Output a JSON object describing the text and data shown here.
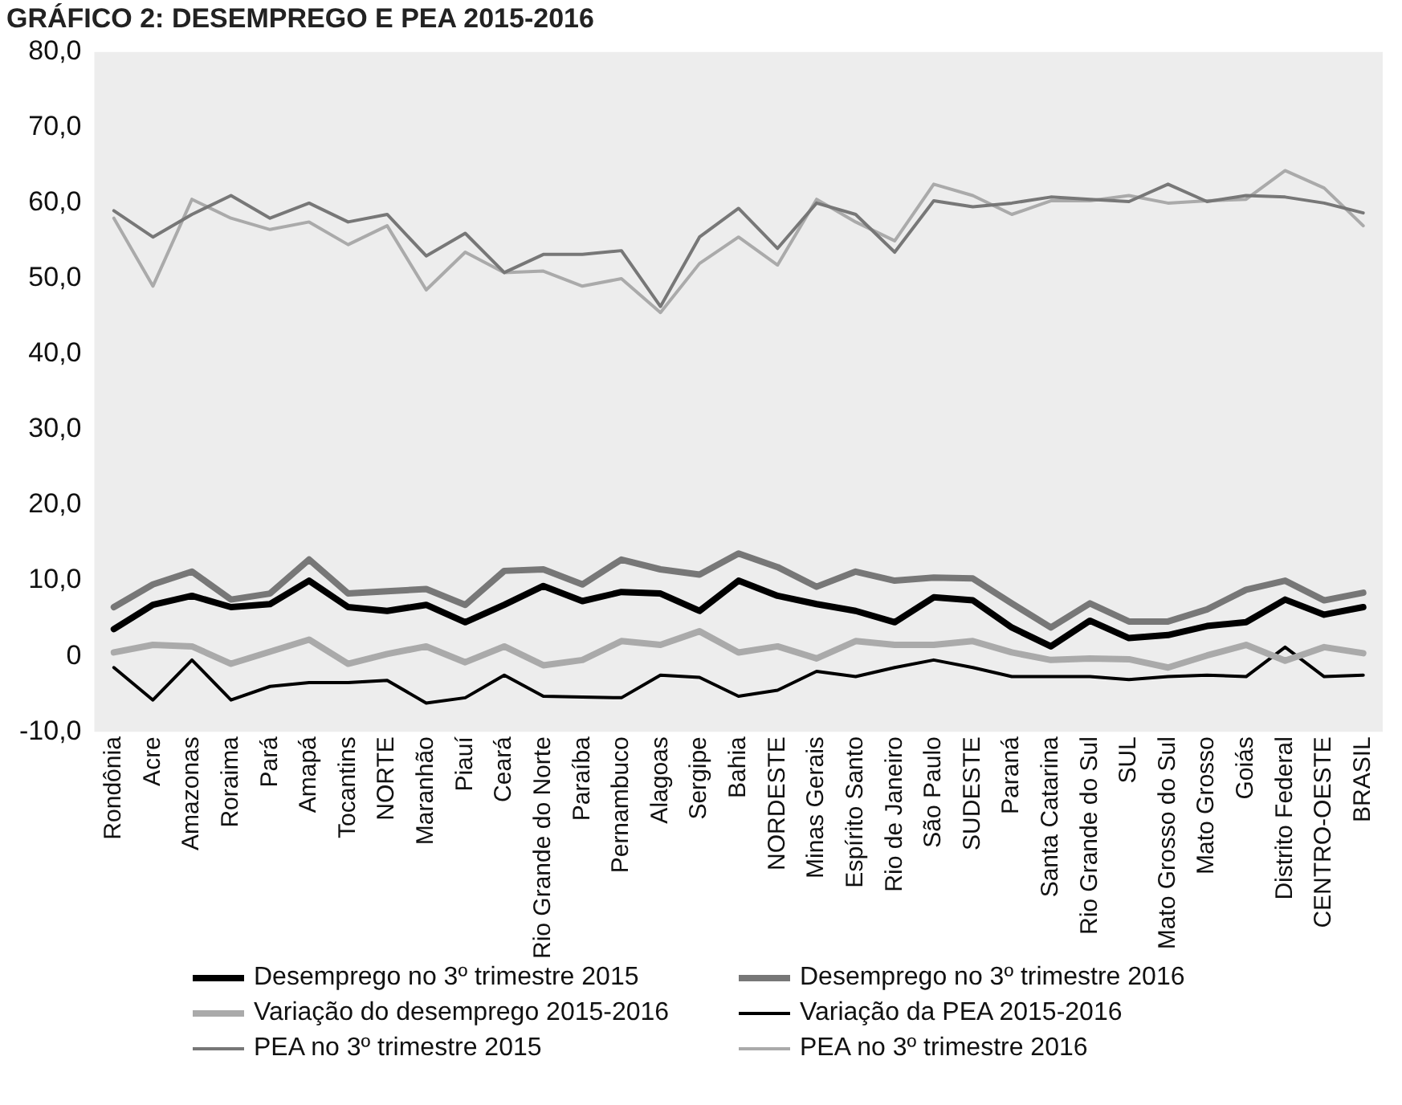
{
  "chart_data": {
    "type": "line",
    "title": "GRÁFICO 2: DESEMPREGO E PEA 2015-2016",
    "categories": [
      "Rondônia",
      "Acre",
      "Amazonas",
      "Roraima",
      "Pará",
      "Amapá",
      "Tocantins",
      "NORTE",
      "Maranhão",
      "Piauí",
      "Ceará",
      "Rio Grande do Norte",
      "Paraíba",
      "Pernambuco",
      "Alagoas",
      "Sergipe",
      "Bahia",
      "NORDESTE",
      "Minas Gerais",
      "Espírito Santo",
      "Rio de Janeiro",
      "São Paulo",
      "SUDESTE",
      "Paraná",
      "Santa Catarina",
      "Rio Grande do Sul",
      "SUL",
      "Mato Grosso do Sul",
      "Mato Grosso",
      "Goiás",
      "Distrito Federal",
      "CENTRO-OESTE",
      "BRASIL"
    ],
    "series": [
      {
        "name": "Desemprego no 3º trimestre 2015",
        "color": "#000000",
        "values": [
          3.6,
          6.8,
          8,
          6.5,
          6.9,
          10,
          6.5,
          6,
          6.8,
          4.5,
          6.8,
          9.3,
          7.3,
          8.5,
          8.3,
          6,
          10,
          8,
          6.9,
          6,
          4.5,
          7.8,
          7.4,
          3.8,
          1.3,
          4.7,
          2.4,
          2.8,
          4,
          4.5,
          7.5,
          5.5,
          6.5
        ]
      },
      {
        "name": "Desemprego no 3º trimestre 2016",
        "color": "#777777",
        "values": [
          6.5,
          9.5,
          11.2,
          7.5,
          8.3,
          12.8,
          8.3,
          8.6,
          8.9,
          6.8,
          11.3,
          11.5,
          9.5,
          12.8,
          11.5,
          10.8,
          13.6,
          11.8,
          9.2,
          11.2,
          10,
          10.4,
          10.3,
          7,
          3.8,
          7,
          4.6,
          4.6,
          6.2,
          8.8,
          10,
          7.4,
          8.4
        ]
      },
      {
        "name": "Variação do desemprego 2015-2016",
        "color": "#aaaaaa",
        "values": [
          0.5,
          1.5,
          1.3,
          -1,
          0.6,
          2.2,
          -1,
          0.3,
          1.3,
          -0.8,
          1.3,
          -1.2,
          -0.5,
          2,
          1.5,
          3.3,
          0.5,
          1.3,
          -0.3,
          2,
          1.5,
          1.5,
          2,
          0.5,
          -0.5,
          -0.3,
          -0.4,
          -1.5,
          0.1,
          1.5,
          -0.6,
          1.2,
          0.4
        ]
      },
      {
        "name": "Variação da PEA 2015-2016",
        "color": "#000000",
        "values": [
          -1.5,
          -5.8,
          -0.5,
          -5.8,
          -4,
          -3.5,
          -3.5,
          -3.2,
          -6.2,
          -5.5,
          -2.5,
          -5.3,
          -5.4,
          -5.5,
          -2.5,
          -2.8,
          -5.3,
          -4.5,
          -2,
          -2.7,
          -1.5,
          -0.5,
          -1.5,
          -2.7,
          -2.7,
          -2.7,
          -3.1,
          -2.7,
          -2.5,
          -2.7,
          1.2,
          -2.7,
          -2.5
        ]
      },
      {
        "name": "PEA no 3º trimestre 2015",
        "color": "#777777",
        "values": [
          59,
          55.5,
          58.5,
          61,
          58,
          60,
          57.5,
          58.5,
          53,
          56,
          50.8,
          53.2,
          53.2,
          53.7,
          46.3,
          55.5,
          59.3,
          54,
          60,
          58.5,
          53.5,
          60.3,
          59.5,
          60,
          60.8,
          60.5,
          60.2,
          62.5,
          60.2,
          61,
          60.8,
          60,
          58.7
        ]
      },
      {
        "name": "PEA no 3º trimestre 2016",
        "color": "#aaaaaa",
        "values": [
          58,
          49,
          60.5,
          58,
          56.5,
          57.5,
          54.5,
          57,
          48.5,
          53.5,
          50.8,
          51,
          49,
          50,
          45.5,
          52,
          55.5,
          51.8,
          60.5,
          57.5,
          55,
          62.5,
          61,
          58.5,
          60.3,
          60.3,
          61,
          60,
          60.3,
          60.5,
          64.3,
          62,
          57
        ]
      }
    ],
    "ylim": [
      -10,
      80
    ],
    "yticks": [
      {
        "value": -10,
        "label": "-10,0"
      },
      0,
      {
        "value": 10,
        "label": "10,0"
      },
      {
        "value": 20,
        "label": "20,0"
      },
      {
        "value": 30,
        "label": "30,0"
      },
      {
        "value": 40,
        "label": "40,0"
      },
      {
        "value": 50,
        "label": "50,0"
      },
      {
        "value": 60,
        "label": "60,0"
      },
      {
        "value": 70,
        "label": "70,0"
      },
      {
        "value": 80,
        "label": "80,0"
      }
    ],
    "grid": false,
    "legend": "bottom",
    "marker": "none",
    "line_style": "solid"
  }
}
